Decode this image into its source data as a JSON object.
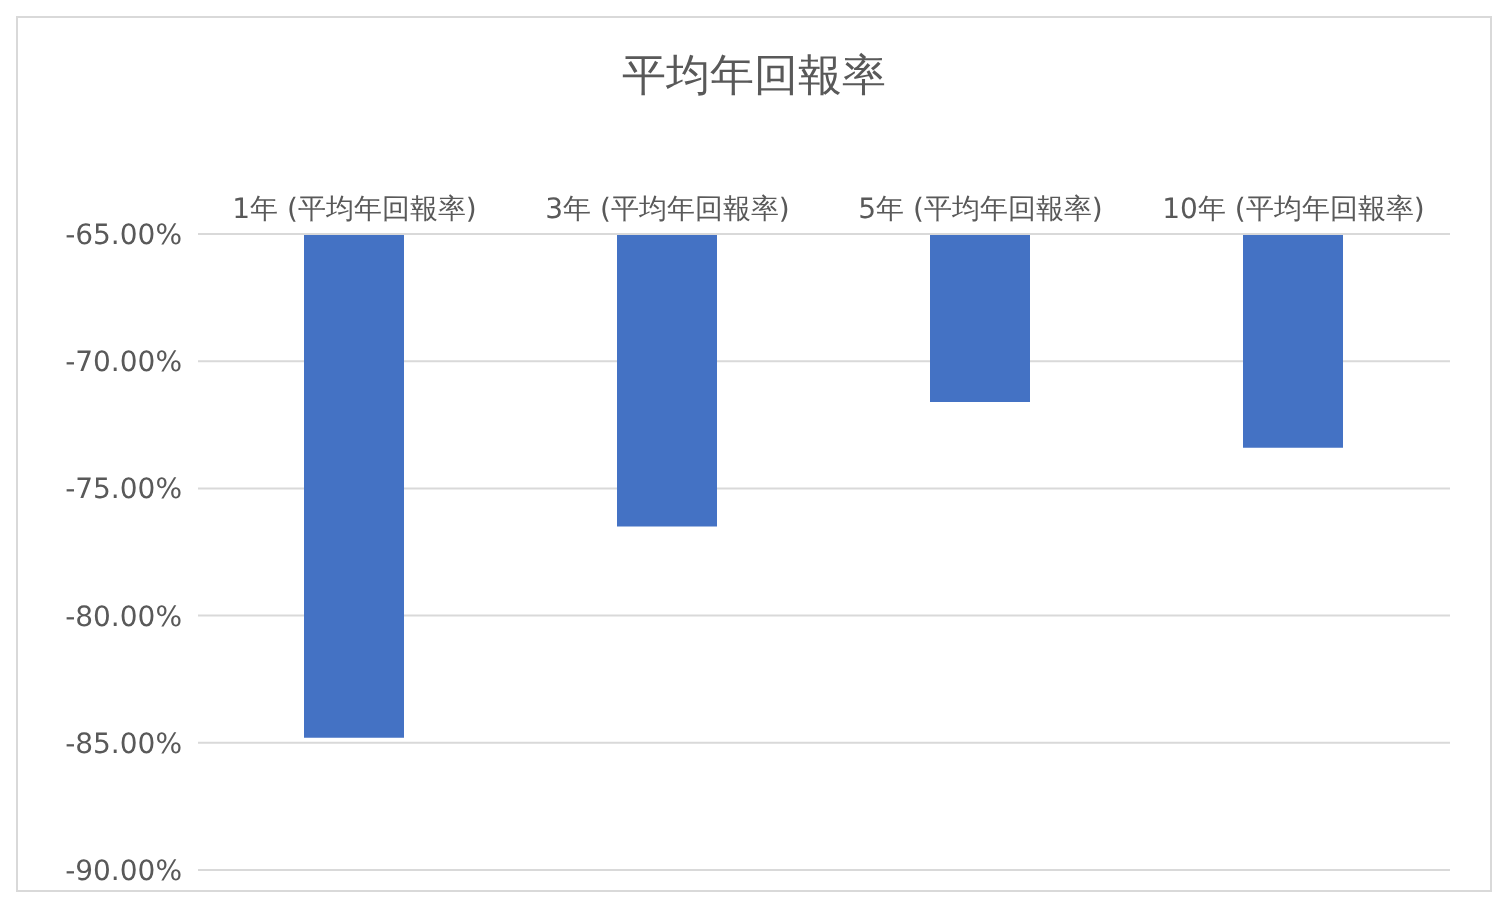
{
  "chart_data": {
    "type": "bar",
    "title": "平均年回報率",
    "categories": [
      "1年 (平均年回報率)",
      "3年 (平均年回報率)",
      "5年 (平均年回報率)",
      "10年 (平均年回報率)"
    ],
    "values": [
      -84.8,
      -76.5,
      -71.6,
      -73.4
    ],
    "color": "#4472c4",
    "ylim": [
      -90,
      -65
    ],
    "yticks": [
      {
        "value": -90,
        "label": "-90.00%"
      },
      {
        "value": -85,
        "label": "-85.00%"
      },
      {
        "value": -80,
        "label": "-80.00%"
      },
      {
        "value": -75,
        "label": "-75.00%"
      },
      {
        "value": -70,
        "label": "-70.00%"
      },
      {
        "value": -65,
        "label": "-65.00%"
      }
    ],
    "grid": "y"
  }
}
